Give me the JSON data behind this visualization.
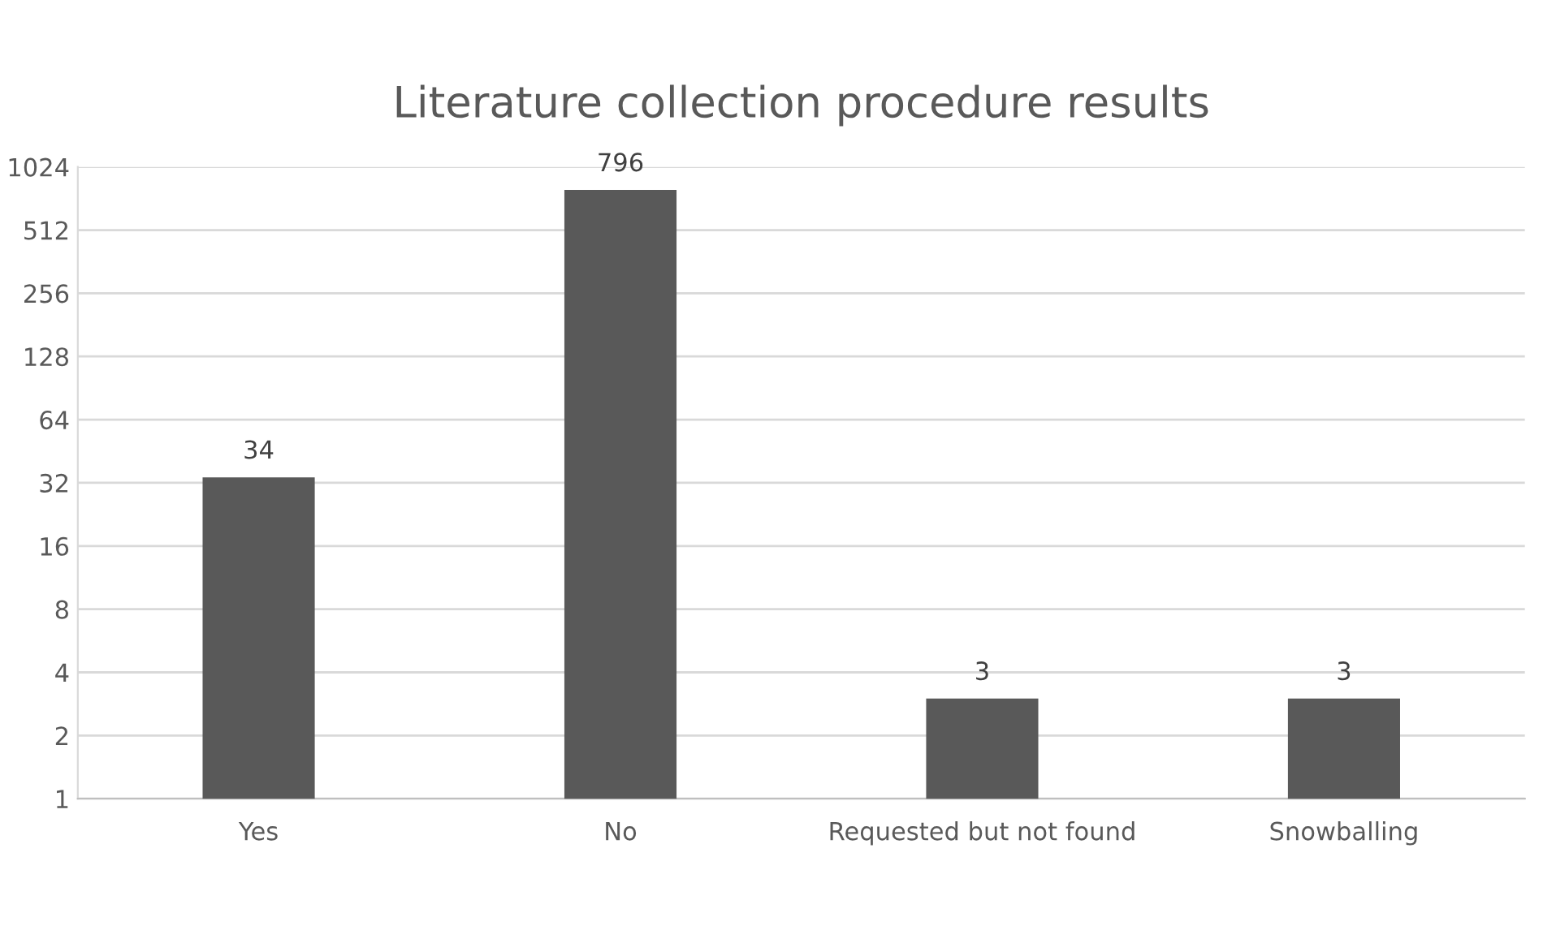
{
  "chart_data": {
    "type": "bar",
    "title": "Literature collection procedure results",
    "categories": [
      "Yes",
      "No",
      "Requested but not found",
      "Snowballing"
    ],
    "values": [
      34,
      796,
      3,
      3
    ],
    "color": "#595959",
    "log": "y",
    "ylim": [
      1,
      1024
    ],
    "yticks": [
      1,
      2,
      4,
      8,
      16,
      32,
      64,
      128,
      256,
      512,
      1024
    ],
    "grid": "y",
    "data_labels": true,
    "legend": false
  }
}
